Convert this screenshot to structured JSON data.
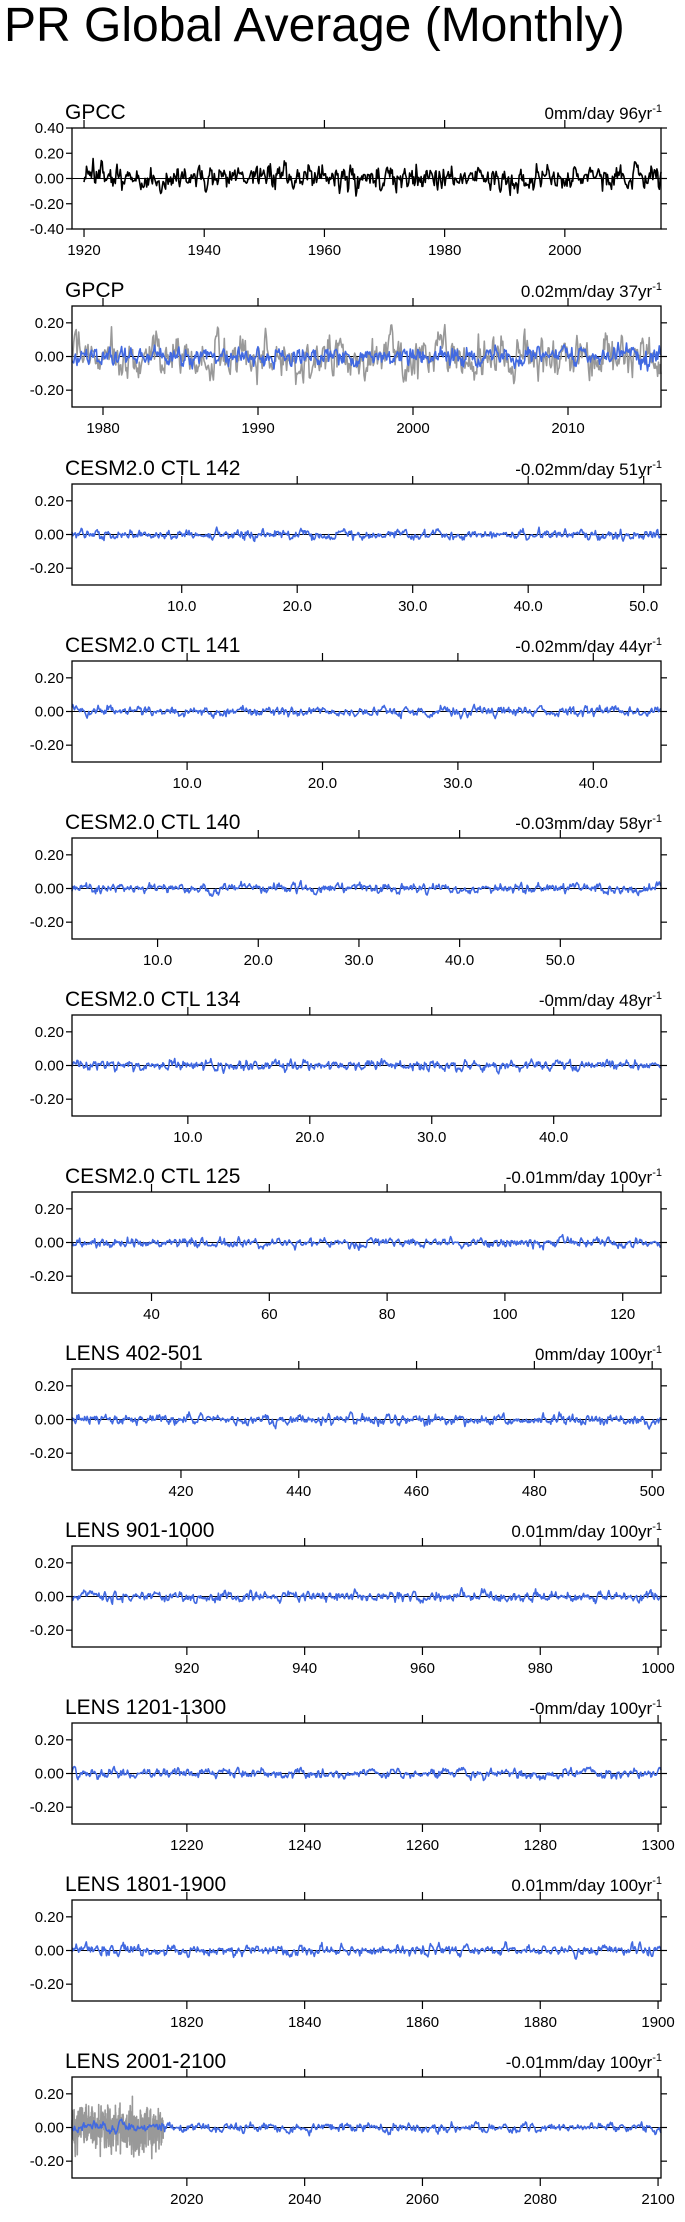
{
  "figure": {
    "title": "PR Global Average (Monthly)",
    "colors": {
      "obs": "#000000",
      "obs_gray": "#999999",
      "model": "#4169E1",
      "axis": "#000000"
    }
  },
  "chart_data": [
    {
      "type": "line",
      "title": "GPCC",
      "trend": "0mm/day 96yr",
      "trend_unit_sup": "-1",
      "xlim": [
        1918,
        2016
      ],
      "ylim": [
        -0.4,
        0.4
      ],
      "yticks": [
        0.4,
        0.2,
        0.0,
        -0.2,
        -0.4
      ],
      "ytick_labels": [
        "0.40",
        "0.20",
        "0.00",
        "-0.20",
        "-0.40"
      ],
      "xticks": [
        1920,
        1940,
        1960,
        1980,
        2000
      ],
      "xtick_labels": [
        "1920",
        "1940",
        "1960",
        "1980",
        "2000"
      ],
      "series": [
        {
          "name": "GPCC",
          "color": "#000000",
          "start": 1920,
          "end": 2016,
          "amp": 0.09,
          "seed": 11
        }
      ]
    },
    {
      "type": "line",
      "title": "GPCP",
      "trend": "0.02mm/day 37yr",
      "trend_unit_sup": "-1",
      "xlim": [
        1978,
        2016
      ],
      "ylim": [
        -0.3,
        0.3
      ],
      "yticks": [
        0.2,
        0.0,
        -0.2
      ],
      "ytick_labels": [
        "0.20",
        "0.00",
        "-0.20"
      ],
      "xticks": [
        1980,
        1990,
        2000,
        2010
      ],
      "xtick_labels": [
        "1980",
        "1990",
        "2000",
        "2010"
      ],
      "series": [
        {
          "name": "GPCC",
          "color": "#999999",
          "start": 1978,
          "end": 2016,
          "amp": 0.11,
          "seed": 12
        },
        {
          "name": "GPCP",
          "color": "#4169E1",
          "start": 1978,
          "end": 2016,
          "amp": 0.05,
          "seed": 13
        }
      ]
    },
    {
      "type": "line",
      "title": "CESM2.0 CTL 142",
      "trend": "-0.02mm/day 51yr",
      "trend_unit_sup": "-1",
      "xlim": [
        0.5,
        51.5
      ],
      "ylim": [
        -0.3,
        0.3
      ],
      "yticks": [
        0.2,
        0.0,
        -0.2
      ],
      "ytick_labels": [
        "0.20",
        "0.00",
        "-0.20"
      ],
      "xticks": [
        10,
        20,
        30,
        40,
        50
      ],
      "xtick_labels": [
        "10.0",
        "20.0",
        "30.0",
        "40.0",
        "50.0"
      ],
      "series": [
        {
          "name": "CESM2.0 CTL 142",
          "color": "#4169E1",
          "start": 0.5,
          "end": 51.5,
          "amp": 0.025,
          "seed": 21
        }
      ]
    },
    {
      "type": "line",
      "title": "CESM2.0 CTL 141",
      "trend": "-0.02mm/day 44yr",
      "trend_unit_sup": "-1",
      "xlim": [
        1.5,
        45.0
      ],
      "ylim": [
        -0.3,
        0.3
      ],
      "yticks": [
        0.2,
        0.0,
        -0.2
      ],
      "ytick_labels": [
        "0.20",
        "0.00",
        "-0.20"
      ],
      "xticks": [
        10,
        20,
        30,
        40
      ],
      "xtick_labels": [
        "10.0",
        "20.0",
        "30.0",
        "40.0"
      ],
      "series": [
        {
          "name": "CESM2.0 CTL 141",
          "color": "#4169E1",
          "start": 1.5,
          "end": 45.0,
          "amp": 0.025,
          "seed": 22
        }
      ]
    },
    {
      "type": "line",
      "title": "CESM2.0 CTL 140",
      "trend": "-0.03mm/day 58yr",
      "trend_unit_sup": "-1",
      "xlim": [
        1.5,
        60.0
      ],
      "ylim": [
        -0.3,
        0.3
      ],
      "yticks": [
        0.2,
        0.0,
        -0.2
      ],
      "ytick_labels": [
        "0.20",
        "0.00",
        "-0.20"
      ],
      "xticks": [
        10,
        20,
        30,
        40,
        50
      ],
      "xtick_labels": [
        "10.0",
        "20.0",
        "30.0",
        "40.0",
        "50.0"
      ],
      "series": [
        {
          "name": "CESM2.0 CTL 140",
          "color": "#4169E1",
          "start": 1.5,
          "end": 60.0,
          "amp": 0.025,
          "seed": 23
        }
      ]
    },
    {
      "type": "line",
      "title": "CESM2.0 CTL 134",
      "trend": "-0mm/day 48yr",
      "trend_unit_sup": "-1",
      "xlim": [
        0.5,
        48.8
      ],
      "ylim": [
        -0.3,
        0.3
      ],
      "yticks": [
        0.2,
        0.0,
        -0.2
      ],
      "ytick_labels": [
        "0.20",
        "0.00",
        "-0.20"
      ],
      "xticks": [
        10,
        20,
        30,
        40
      ],
      "xtick_labels": [
        "10.0",
        "20.0",
        "30.0",
        "40.0"
      ],
      "series": [
        {
          "name": "CESM2.0 CTL 134",
          "color": "#4169E1",
          "start": 0.5,
          "end": 48.8,
          "amp": 0.027,
          "seed": 24
        }
      ]
    },
    {
      "type": "line",
      "title": "CESM2.0 CTL 125",
      "trend": "-0.01mm/day 100yr",
      "trend_unit_sup": "-1",
      "xlim": [
        26.5,
        126.5
      ],
      "ylim": [
        -0.3,
        0.3
      ],
      "yticks": [
        0.2,
        0.0,
        -0.2
      ],
      "ytick_labels": [
        "0.20",
        "0.00",
        "-0.20"
      ],
      "xticks": [
        40,
        60,
        80,
        100,
        120
      ],
      "xtick_labels": [
        "40",
        "60",
        "80",
        "100",
        "120"
      ],
      "series": [
        {
          "name": "CESM2.0 CTL 125",
          "color": "#4169E1",
          "start": 26.5,
          "end": 126.5,
          "amp": 0.025,
          "seed": 25
        }
      ]
    },
    {
      "type": "line",
      "title": "LENS 402-501",
      "trend": "0mm/day 100yr",
      "trend_unit_sup": "-1",
      "xlim": [
        401.5,
        501.5
      ],
      "ylim": [
        -0.3,
        0.3
      ],
      "yticks": [
        0.2,
        0.0,
        -0.2
      ],
      "ytick_labels": [
        "0.20",
        "0.00",
        "-0.20"
      ],
      "xticks": [
        420,
        440,
        460,
        480,
        500
      ],
      "xtick_labels": [
        "420",
        "440",
        "460",
        "480",
        "500"
      ],
      "series": [
        {
          "name": "LENS 402-501",
          "color": "#4169E1",
          "start": 401.5,
          "end": 501.5,
          "amp": 0.027,
          "seed": 31
        }
      ]
    },
    {
      "type": "line",
      "title": "LENS 901-1000",
      "trend": "0.01mm/day 100yr",
      "trend_unit_sup": "-1",
      "xlim": [
        900.5,
        1000.5
      ],
      "ylim": [
        -0.3,
        0.3
      ],
      "yticks": [
        0.2,
        0.0,
        -0.2
      ],
      "ytick_labels": [
        "0.20",
        "0.00",
        "-0.20"
      ],
      "xticks": [
        920,
        940,
        960,
        980,
        1000
      ],
      "xtick_labels": [
        "920",
        "940",
        "960",
        "980",
        "1000"
      ],
      "series": [
        {
          "name": "LENS 901-1000",
          "color": "#4169E1",
          "start": 900.5,
          "end": 1000.5,
          "amp": 0.027,
          "seed": 32
        }
      ]
    },
    {
      "type": "line",
      "title": "LENS 1201-1300",
      "trend": "-0mm/day 100yr",
      "trend_unit_sup": "-1",
      "xlim": [
        1200.5,
        1300.5
      ],
      "ylim": [
        -0.3,
        0.3
      ],
      "yticks": [
        0.2,
        0.0,
        -0.2
      ],
      "ytick_labels": [
        "0.20",
        "0.00",
        "-0.20"
      ],
      "xticks": [
        1220,
        1240,
        1260,
        1280,
        1300
      ],
      "xtick_labels": [
        "1220",
        "1240",
        "1260",
        "1280",
        "1300"
      ],
      "series": [
        {
          "name": "LENS 1201-1300",
          "color": "#4169E1",
          "start": 1200.5,
          "end": 1300.5,
          "amp": 0.025,
          "seed": 33
        }
      ]
    },
    {
      "type": "line",
      "title": "LENS 1801-1900",
      "trend": "0.01mm/day 100yr",
      "trend_unit_sup": "-1",
      "xlim": [
        1800.5,
        1900.5
      ],
      "ylim": [
        -0.3,
        0.3
      ],
      "yticks": [
        0.2,
        0.0,
        -0.2
      ],
      "ytick_labels": [
        "0.20",
        "0.00",
        "-0.20"
      ],
      "xticks": [
        1820,
        1840,
        1860,
        1880,
        1900
      ],
      "xtick_labels": [
        "1820",
        "1840",
        "1860",
        "1880",
        "1900"
      ],
      "series": [
        {
          "name": "LENS 1801-1900",
          "color": "#4169E1",
          "start": 1800.5,
          "end": 1900.5,
          "amp": 0.027,
          "seed": 34
        }
      ]
    },
    {
      "type": "line",
      "title": "LENS 2001-2100",
      "trend": "-0.01mm/day 100yr",
      "trend_unit_sup": "-1",
      "xlim": [
        2000.5,
        2100.5
      ],
      "ylim": [
        -0.3,
        0.3
      ],
      "yticks": [
        0.2,
        0.0,
        -0.2
      ],
      "ytick_labels": [
        "0.20",
        "0.00",
        "-0.20"
      ],
      "xticks": [
        2020,
        2040,
        2060,
        2080,
        2100
      ],
      "xtick_labels": [
        "2020",
        "2040",
        "2060",
        "2080",
        "2100"
      ],
      "series": [
        {
          "name": "GPCC",
          "color": "#999999",
          "start": 2000.5,
          "end": 2016,
          "amp": 0.11,
          "seed": 35
        },
        {
          "name": "LENS 2001-2100",
          "color": "#4169E1",
          "start": 2000.5,
          "end": 2100.5,
          "amp": 0.025,
          "seed": 36
        }
      ]
    }
  ]
}
